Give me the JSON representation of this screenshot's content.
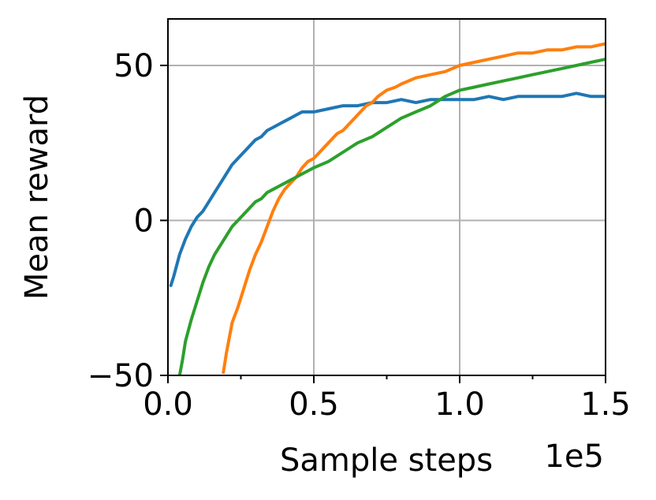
{
  "chart_data": {
    "type": "line",
    "xlabel": "Sample steps",
    "ylabel": "Mean reward",
    "x_offset_label": "1e5",
    "xlim": [
      0,
      1.5
    ],
    "ylim": [
      -50,
      65
    ],
    "x_ticks": [
      0.0,
      0.5,
      1.0,
      1.5
    ],
    "x_tick_labels": [
      "0.0",
      "0.5",
      "1.0",
      "1.5"
    ],
    "x_minor_ticks": [
      0.25,
      0.75,
      1.25
    ],
    "y_ticks": [
      -50,
      0,
      50
    ],
    "y_tick_labels": [
      "−50",
      "0",
      "50"
    ],
    "grid": true,
    "series": [
      {
        "color": "#1f77b4",
        "points": [
          [
            0.01,
            -21
          ],
          [
            0.02,
            -18
          ],
          [
            0.04,
            -11
          ],
          [
            0.06,
            -6
          ],
          [
            0.08,
            -2
          ],
          [
            0.1,
            1
          ],
          [
            0.12,
            3
          ],
          [
            0.14,
            6
          ],
          [
            0.16,
            9
          ],
          [
            0.18,
            12
          ],
          [
            0.2,
            15
          ],
          [
            0.22,
            18
          ],
          [
            0.24,
            20
          ],
          [
            0.26,
            22
          ],
          [
            0.28,
            24
          ],
          [
            0.3,
            26
          ],
          [
            0.32,
            27
          ],
          [
            0.34,
            29
          ],
          [
            0.36,
            30
          ],
          [
            0.38,
            31
          ],
          [
            0.4,
            32
          ],
          [
            0.42,
            33
          ],
          [
            0.44,
            34
          ],
          [
            0.46,
            35
          ],
          [
            0.5,
            35
          ],
          [
            0.55,
            36
          ],
          [
            0.6,
            37
          ],
          [
            0.65,
            37
          ],
          [
            0.7,
            38
          ],
          [
            0.75,
            38
          ],
          [
            0.8,
            39
          ],
          [
            0.85,
            38
          ],
          [
            0.9,
            39
          ],
          [
            0.95,
            39
          ],
          [
            1.0,
            39
          ],
          [
            1.05,
            39
          ],
          [
            1.1,
            40
          ],
          [
            1.15,
            39
          ],
          [
            1.2,
            40
          ],
          [
            1.25,
            40
          ],
          [
            1.3,
            40
          ],
          [
            1.35,
            40
          ],
          [
            1.4,
            41
          ],
          [
            1.45,
            40
          ],
          [
            1.5,
            40
          ]
        ]
      },
      {
        "color": "#ff7f0e",
        "points": [
          [
            0.19,
            -49
          ],
          [
            0.2,
            -43
          ],
          [
            0.22,
            -33
          ],
          [
            0.24,
            -28
          ],
          [
            0.26,
            -22
          ],
          [
            0.28,
            -16
          ],
          [
            0.3,
            -11
          ],
          [
            0.32,
            -7
          ],
          [
            0.34,
            -2
          ],
          [
            0.36,
            3
          ],
          [
            0.38,
            7
          ],
          [
            0.4,
            10
          ],
          [
            0.42,
            12
          ],
          [
            0.44,
            14
          ],
          [
            0.46,
            17
          ],
          [
            0.48,
            19
          ],
          [
            0.5,
            20
          ],
          [
            0.52,
            22
          ],
          [
            0.54,
            24
          ],
          [
            0.56,
            26
          ],
          [
            0.58,
            28
          ],
          [
            0.6,
            29
          ],
          [
            0.62,
            31
          ],
          [
            0.64,
            33
          ],
          [
            0.66,
            35
          ],
          [
            0.68,
            37
          ],
          [
            0.7,
            38
          ],
          [
            0.72,
            40
          ],
          [
            0.75,
            42
          ],
          [
            0.78,
            43
          ],
          [
            0.8,
            44
          ],
          [
            0.85,
            46
          ],
          [
            0.9,
            47
          ],
          [
            0.95,
            48
          ],
          [
            1.0,
            50
          ],
          [
            1.05,
            51
          ],
          [
            1.1,
            52
          ],
          [
            1.15,
            53
          ],
          [
            1.2,
            54
          ],
          [
            1.25,
            54
          ],
          [
            1.3,
            55
          ],
          [
            1.35,
            55
          ],
          [
            1.4,
            56
          ],
          [
            1.45,
            56
          ],
          [
            1.5,
            57
          ]
        ]
      },
      {
        "color": "#2ca02c",
        "points": [
          [
            0.04,
            -50
          ],
          [
            0.05,
            -45
          ],
          [
            0.06,
            -39
          ],
          [
            0.08,
            -32
          ],
          [
            0.1,
            -26
          ],
          [
            0.12,
            -20
          ],
          [
            0.14,
            -15
          ],
          [
            0.16,
            -11
          ],
          [
            0.18,
            -8
          ],
          [
            0.2,
            -5
          ],
          [
            0.22,
            -2
          ],
          [
            0.24,
            0
          ],
          [
            0.26,
            2
          ],
          [
            0.28,
            4
          ],
          [
            0.3,
            6
          ],
          [
            0.32,
            7
          ],
          [
            0.34,
            9
          ],
          [
            0.36,
            10
          ],
          [
            0.38,
            11
          ],
          [
            0.4,
            12
          ],
          [
            0.42,
            13
          ],
          [
            0.44,
            14
          ],
          [
            0.46,
            15
          ],
          [
            0.48,
            16
          ],
          [
            0.5,
            17
          ],
          [
            0.55,
            19
          ],
          [
            0.6,
            22
          ],
          [
            0.65,
            25
          ],
          [
            0.7,
            27
          ],
          [
            0.75,
            30
          ],
          [
            0.8,
            33
          ],
          [
            0.85,
            35
          ],
          [
            0.9,
            37
          ],
          [
            0.95,
            40
          ],
          [
            1.0,
            42
          ],
          [
            1.05,
            43
          ],
          [
            1.1,
            44
          ],
          [
            1.15,
            45
          ],
          [
            1.2,
            46
          ],
          [
            1.25,
            47
          ],
          [
            1.3,
            48
          ],
          [
            1.35,
            49
          ],
          [
            1.4,
            50
          ],
          [
            1.45,
            51
          ],
          [
            1.5,
            52
          ]
        ]
      }
    ]
  }
}
